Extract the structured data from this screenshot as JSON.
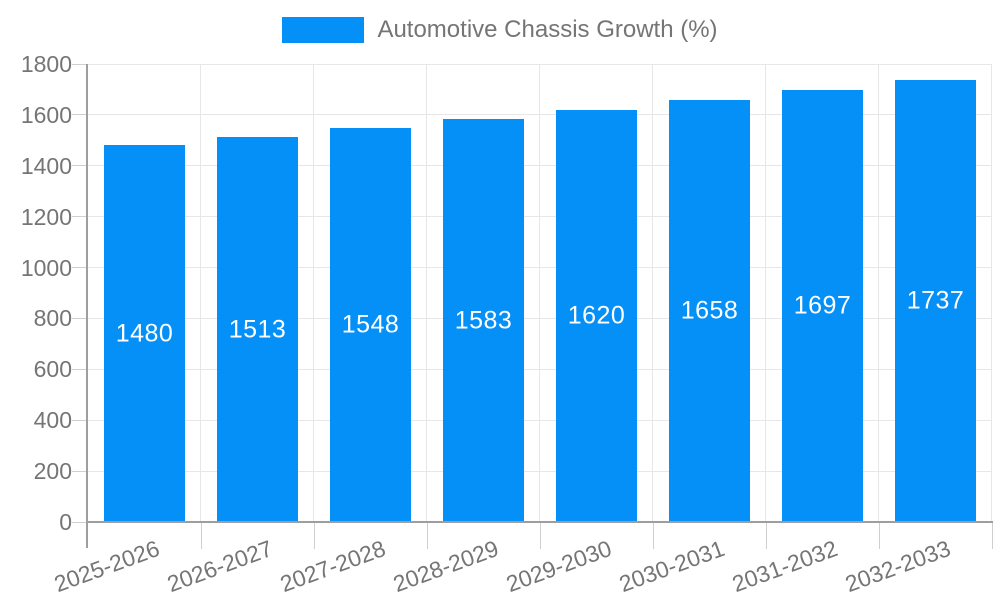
{
  "legend": {
    "label": "Automotive Chassis Growth (%)"
  },
  "chart_data": {
    "type": "bar",
    "title": "Automotive Chassis Growth (%)",
    "categories": [
      "2025-2026",
      "2026-2027",
      "2027-2028",
      "2028-2029",
      "2029-2030",
      "2030-2031",
      "2031-2032",
      "2032-2033"
    ],
    "values": [
      1480,
      1513,
      1548,
      1583,
      1620,
      1658,
      1697,
      1737
    ],
    "series": [
      {
        "name": "Automotive Chassis Growth (%)",
        "values": [
          1480,
          1513,
          1548,
          1583,
          1620,
          1658,
          1697,
          1737
        ]
      }
    ],
    "xlabel": "",
    "ylabel": "",
    "ylim": [
      0,
      1800
    ],
    "ytick_step": 200,
    "yticks": [
      0,
      200,
      400,
      600,
      800,
      1000,
      1200,
      1400,
      1600,
      1800
    ],
    "grid": true,
    "legend_position": "top-center",
    "x_label_rotation_deg": -20,
    "bar_color": "#0590f8",
    "value_label_color": "#ffffff",
    "axis_text_color": "#757575",
    "gridline_color": "#e7e7e7",
    "axis_line_color": "#9e9e9e",
    "background_color": "#ffffff"
  }
}
